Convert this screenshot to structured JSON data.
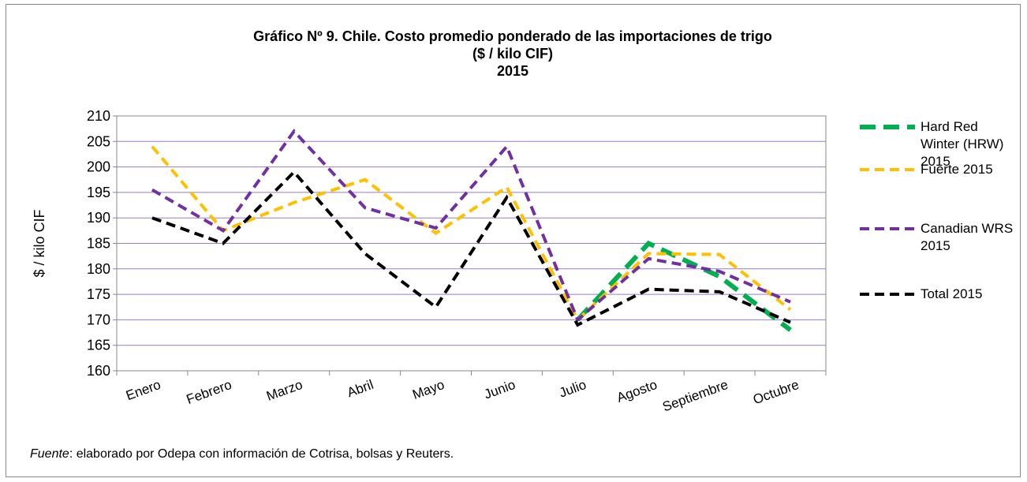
{
  "chart_data": {
    "type": "line",
    "title": [
      "Gráfico Nº 9. Chile. Costo promedio ponderado de las importaciones de trigo",
      "($ / kilo CIF)",
      "2015"
    ],
    "y_label": "$ / kilo CIF",
    "categories": [
      "Enero",
      "Febrero",
      "Marzo",
      "Abril",
      "Mayo",
      "Junio",
      "Julio",
      "Agosto",
      "Septiembre",
      "Octubre"
    ],
    "series": [
      {
        "name": "Hard Red Winter (HRW) 2015",
        "color": "#00b050",
        "values": [
          null,
          null,
          null,
          null,
          null,
          null,
          170,
          185,
          178.5,
          168
        ]
      },
      {
        "name": "Fuerte 2015",
        "color": "#ffc000",
        "values": [
          204,
          187.5,
          193,
          197.5,
          187,
          196,
          170,
          183,
          182.8,
          172
        ]
      },
      {
        "name": "Canadian WRS 2015",
        "color": "#7030a0",
        "values": [
          195.5,
          187.5,
          207,
          192,
          188,
          204,
          170,
          182,
          179.5,
          173.5
        ]
      },
      {
        "name": "Total 2015",
        "color": "#000000",
        "values": [
          190,
          185,
          199,
          183,
          172.5,
          194,
          169,
          176,
          175.5,
          169.5
        ]
      }
    ],
    "ylim": [
      160,
      210
    ],
    "yticks": [
      160,
      165,
      170,
      175,
      180,
      185,
      190,
      195,
      200,
      205,
      210
    ],
    "grid": true,
    "source_label": "Fuente",
    "source_text": ": elaborado por Odepa con información de Cotrisa, bolsas y Reuters."
  }
}
